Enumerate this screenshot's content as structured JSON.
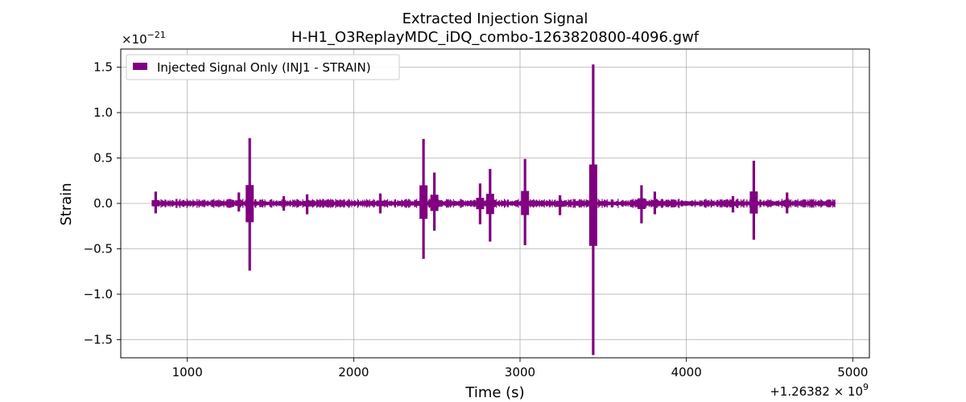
{
  "chart_data": {
    "type": "line",
    "title": "Extracted Injection Signal",
    "subtitle": "H-H1_O3ReplayMDC_iDQ_combo-1263820800-4096.gwf",
    "xlabel": "Time (s)",
    "ylabel": "Strain",
    "y_exponent_base": "×10",
    "y_exponent_power": "−21",
    "x_offset_prefix": "+1.26382 × 10",
    "x_offset_power": "9",
    "xlim": [
      600,
      5100
    ],
    "ylim": [
      -1.7,
      1.7
    ],
    "x_ticks": [
      1000,
      2000,
      3000,
      4000,
      5000
    ],
    "x_tick_labels": [
      "1000",
      "2000",
      "3000",
      "4000",
      "5000"
    ],
    "y_ticks": [
      -1.5,
      -1.0,
      -0.5,
      0.0,
      0.5,
      1.0,
      1.5
    ],
    "y_tick_labels": [
      "−1.5",
      "−1.0",
      "−0.5",
      "0.0",
      "0.5",
      "1.0",
      "1.5"
    ],
    "grid": true,
    "legend_position": "top-left",
    "series": [
      {
        "name": "Injected Signal Only (INJ1 - STRAIN)",
        "color": "#800080",
        "x_range": [
          800,
          4896
        ],
        "baseline_amplitude": 0.015,
        "bursts": [
          {
            "x": 810,
            "max": 0.13,
            "min": -0.11
          },
          {
            "x": 1310,
            "max": 0.12,
            "min": -0.09
          },
          {
            "x": 1375,
            "max": 0.72,
            "min": -0.74
          },
          {
            "x": 1580,
            "max": 0.08,
            "min": -0.08
          },
          {
            "x": 1720,
            "max": 0.1,
            "min": -0.12
          },
          {
            "x": 2160,
            "max": 0.11,
            "min": -0.11
          },
          {
            "x": 2420,
            "max": 0.71,
            "min": -0.61
          },
          {
            "x": 2485,
            "max": 0.34,
            "min": -0.3
          },
          {
            "x": 2760,
            "max": 0.22,
            "min": -0.23
          },
          {
            "x": 2820,
            "max": 0.38,
            "min": -0.42
          },
          {
            "x": 3030,
            "max": 0.49,
            "min": -0.46
          },
          {
            "x": 3240,
            "max": 0.09,
            "min": -0.13
          },
          {
            "x": 3440,
            "max": 1.53,
            "min": -1.67
          },
          {
            "x": 3730,
            "max": 0.2,
            "min": -0.22
          },
          {
            "x": 3810,
            "max": 0.13,
            "min": -0.12
          },
          {
            "x": 4280,
            "max": 0.08,
            "min": -0.1
          },
          {
            "x": 4405,
            "max": 0.47,
            "min": -0.4
          },
          {
            "x": 4605,
            "max": 0.12,
            "min": -0.11
          }
        ]
      }
    ]
  }
}
